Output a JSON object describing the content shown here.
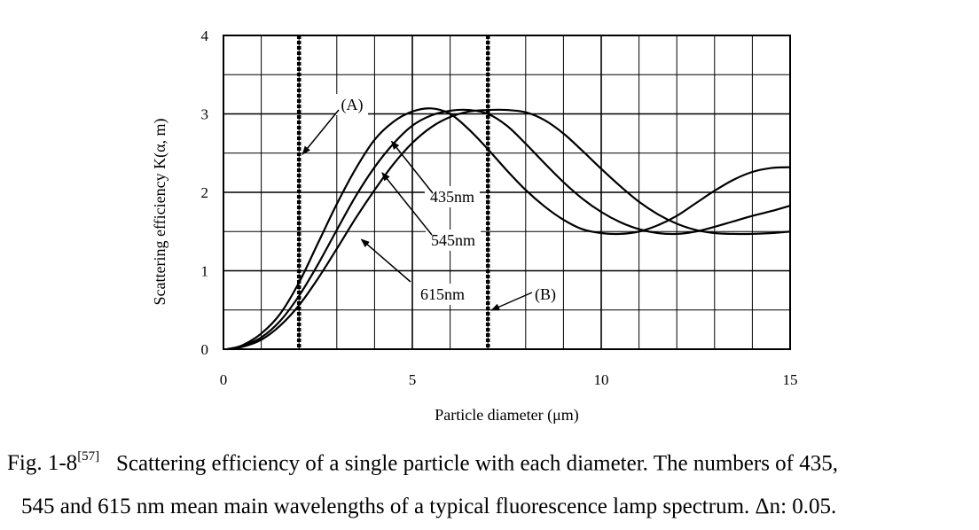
{
  "chart_data": {
    "type": "line",
    "xlabel": "Particle diameter (μm)",
    "ylabel": "Scattering efficiency K(α, m)",
    "xlim": [
      0,
      15
    ],
    "ylim": [
      0,
      4
    ],
    "xticks": [
      "0",
      "5",
      "10",
      "15"
    ],
    "yticks": [
      "0",
      "1",
      "2",
      "3",
      "4"
    ],
    "grid": true,
    "legend": "inline labels with arrows",
    "series": [
      {
        "name": "435nm",
        "x": [
          0.1,
          0.5,
          1,
          1.5,
          2,
          2.5,
          3,
          3.5,
          4,
          4.5,
          5,
          5.5,
          6,
          6.5,
          7,
          7.5,
          8,
          8.5,
          9,
          9.5,
          10,
          10.5,
          11,
          11.5,
          12,
          12.5,
          13,
          13.5,
          14,
          14.5,
          15
        ],
        "y": [
          0.0,
          0.05,
          0.2,
          0.45,
          0.85,
          1.35,
          1.85,
          2.3,
          2.67,
          2.9,
          3.03,
          3.07,
          3.0,
          2.8,
          2.55,
          2.28,
          2.03,
          1.82,
          1.65,
          1.53,
          1.48,
          1.47,
          1.5,
          1.58,
          1.7,
          1.86,
          2.02,
          2.16,
          2.26,
          2.31,
          2.32
        ]
      },
      {
        "name": "545nm",
        "x": [
          0.1,
          0.5,
          1,
          1.5,
          2,
          2.5,
          3,
          3.5,
          4,
          4.5,
          5,
          5.5,
          6,
          6.5,
          7,
          7.5,
          8,
          8.5,
          9,
          9.5,
          10,
          10.5,
          11,
          11.5,
          12,
          12.5,
          13,
          13.5,
          14,
          14.5,
          15
        ],
        "y": [
          0.0,
          0.04,
          0.15,
          0.36,
          0.68,
          1.08,
          1.52,
          1.95,
          2.32,
          2.62,
          2.85,
          2.98,
          3.04,
          3.05,
          3.0,
          2.85,
          2.62,
          2.37,
          2.13,
          1.92,
          1.75,
          1.62,
          1.53,
          1.48,
          1.47,
          1.5,
          1.56,
          1.63,
          1.7,
          1.76,
          1.83
        ]
      },
      {
        "name": "615nm",
        "x": [
          0.1,
          0.5,
          1,
          1.5,
          2,
          2.5,
          3,
          3.5,
          4,
          4.5,
          5,
          5.5,
          6,
          6.5,
          7,
          7.5,
          8,
          8.5,
          9,
          9.5,
          10,
          10.5,
          11,
          11.5,
          12,
          12.5,
          13,
          13.5,
          14,
          14.5,
          15
        ],
        "y": [
          0.0,
          0.03,
          0.12,
          0.3,
          0.56,
          0.9,
          1.28,
          1.67,
          2.03,
          2.36,
          2.63,
          2.83,
          2.96,
          3.03,
          3.05,
          3.05,
          3.02,
          2.92,
          2.75,
          2.53,
          2.3,
          2.08,
          1.88,
          1.72,
          1.6,
          1.52,
          1.48,
          1.47,
          1.47,
          1.48,
          1.5
        ]
      }
    ],
    "vlines": [
      {
        "x": 2,
        "label": "(A)"
      },
      {
        "x": 7,
        "label": "(B)"
      }
    ]
  },
  "caption": {
    "fig_label": "Fig. 1-8",
    "fig_ref": "[57]",
    "line1": "Scattering efficiency of a single particle with each diameter. The numbers of 435,",
    "line2": "545 and 615 nm mean main wavelengths of a typical fluorescence lamp spectrum. Δn: 0.05."
  }
}
